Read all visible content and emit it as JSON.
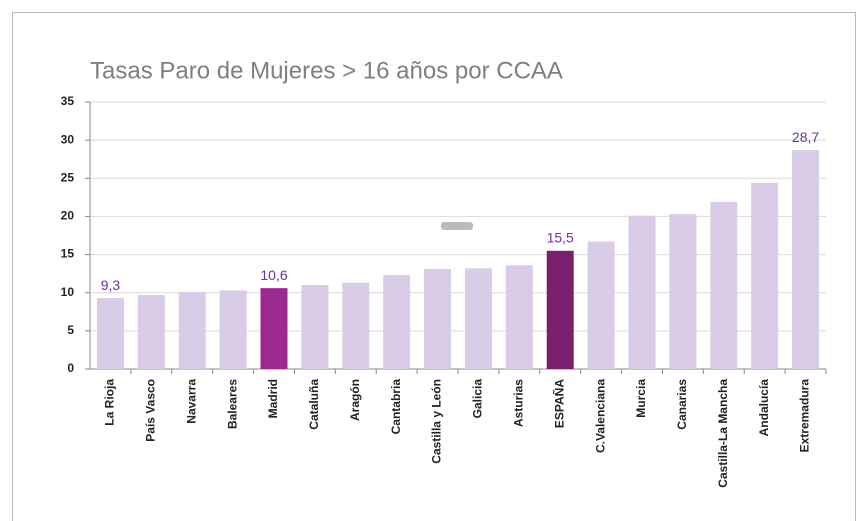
{
  "chart_data": {
    "type": "bar",
    "title": "Tasas Paro de Mujeres > 16 años por CCAA",
    "categories": [
      "La Rioja",
      "País Vasco",
      "Navarra",
      "Baleares",
      "Madrid",
      "Cataluña",
      "Aragón",
      "Cantabria",
      "Castilla y León",
      "Galicia",
      "Asturias",
      "ESPAÑA",
      "C.Valenciana",
      "Murcia",
      "Canarias",
      "Castilla-La Mancha",
      "Andalucía",
      "Extremadura"
    ],
    "values": [
      9.3,
      9.7,
      10.1,
      10.3,
      10.6,
      11.0,
      11.3,
      12.3,
      13.1,
      13.2,
      13.6,
      15.5,
      16.7,
      20.1,
      20.3,
      21.9,
      24.4,
      28.7
    ],
    "value_labels": [
      "9,3",
      null,
      null,
      null,
      "10,6",
      null,
      null,
      null,
      null,
      null,
      null,
      "15,5",
      null,
      null,
      null,
      null,
      null,
      "28,7"
    ],
    "colors": [
      "#d8cce6",
      "#d8cce6",
      "#d8cce6",
      "#d8cce6",
      "#9c2a8e",
      "#d8cce6",
      "#d8cce6",
      "#d8cce6",
      "#d8cce6",
      "#d8cce6",
      "#d8cce6",
      "#7a1f70",
      "#d8cce6",
      "#d8cce6",
      "#d8cce6",
      "#d8cce6",
      "#d8cce6",
      "#d8cce6"
    ],
    "ylim": [
      0,
      35
    ],
    "yticks": [
      0,
      5,
      10,
      15,
      20,
      25,
      30,
      35
    ],
    "grid": true
  }
}
